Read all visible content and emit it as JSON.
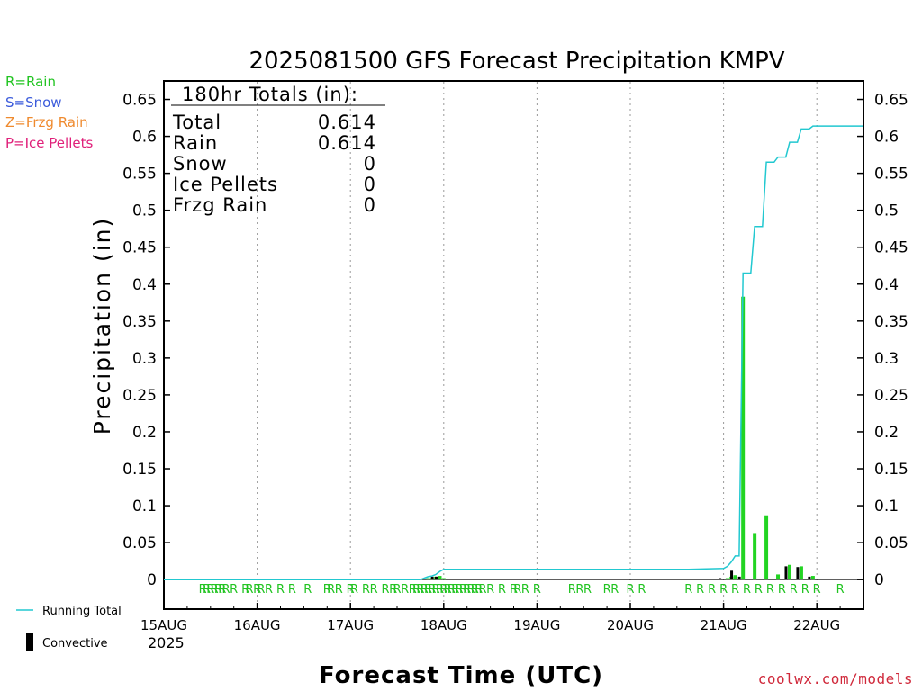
{
  "page": {
    "credit": "coolwx.com/models"
  },
  "precip_type_legend": [
    {
      "text": "R=Rain",
      "color": "#22c422"
    },
    {
      "text": "S=Snow",
      "color": "#3b5bdb"
    },
    {
      "text": "Z=Frzg Rain",
      "color": "#ef8a2e"
    },
    {
      "text": "P=Ice Pellets",
      "color": "#e0207a"
    }
  ],
  "totals_box": {
    "header": "180hr Totals (in):",
    "rows": [
      {
        "label": "Total",
        "value": "0.614"
      },
      {
        "label": "Rain",
        "value": "0.614"
      },
      {
        "label": "Snow",
        "value": "0"
      },
      {
        "label": "Ice Pellets",
        "value": "0"
      },
      {
        "label": "Frzg Rain",
        "value": "0"
      }
    ]
  },
  "bottom_legend": {
    "running_total_label": "Running Total",
    "convective_label": "Convective"
  },
  "chart_data": {
    "type": "bar",
    "title": "2025081500 GFS Forecast Precipitation KMPV",
    "xlabel": "Forecast Time (UTC)",
    "ylabel": "Precipitation (in)",
    "year_label": "2025",
    "x_unit": "forecast hour",
    "xlim": [
      0,
      180
    ],
    "ylim": [
      -0.04,
      0.675
    ],
    "y_ticks": [
      0,
      0.05,
      0.1,
      0.15,
      0.2,
      0.25,
      0.3,
      0.35,
      0.4,
      0.45,
      0.5,
      0.55,
      0.6,
      0.65
    ],
    "y_tick_labels": [
      "0",
      "0.05",
      "0.1",
      "0.15",
      "0.2",
      "0.25",
      "0.3",
      "0.35",
      "0.4",
      "0.45",
      "0.5",
      "0.55",
      "0.6",
      "0.65"
    ],
    "x_ticks": [
      {
        "hour": 0,
        "label": "15AUG"
      },
      {
        "hour": 24,
        "label": "16AUG"
      },
      {
        "hour": 48,
        "label": "17AUG"
      },
      {
        "hour": 72,
        "label": "18AUG"
      },
      {
        "hour": 96,
        "label": "19AUG"
      },
      {
        "hour": 120,
        "label": "20AUG"
      },
      {
        "hour": 144,
        "label": "21AUG"
      },
      {
        "hour": 168,
        "label": "22AUG"
      }
    ],
    "grid": "vertical dotted at day boundaries",
    "series": [
      {
        "name": "Running Total",
        "color": "#22c8d0",
        "points": [
          [
            0,
            0
          ],
          [
            66,
            0
          ],
          [
            67,
            0.002
          ],
          [
            68,
            0.004
          ],
          [
            69,
            0.005
          ],
          [
            70,
            0.007
          ],
          [
            71,
            0.011
          ],
          [
            72,
            0.014
          ],
          [
            135,
            0.014
          ],
          [
            144,
            0.015
          ],
          [
            145,
            0.018
          ],
          [
            146,
            0.024
          ],
          [
            147,
            0.032
          ],
          [
            148,
            0.032
          ],
          [
            149,
            0.415
          ],
          [
            151,
            0.415
          ],
          [
            152,
            0.478
          ],
          [
            154,
            0.478
          ],
          [
            155,
            0.565
          ],
          [
            157,
            0.565
          ],
          [
            158,
            0.572
          ],
          [
            160,
            0.572
          ],
          [
            161,
            0.592
          ],
          [
            163,
            0.592
          ],
          [
            164,
            0.61
          ],
          [
            166,
            0.61
          ],
          [
            167,
            0.614
          ],
          [
            180,
            0.614
          ]
        ]
      },
      {
        "name": "Rain",
        "color": "#22d422",
        "bars": [
          [
            68,
            0.002
          ],
          [
            69,
            0.002
          ],
          [
            70,
            0.004
          ],
          [
            71,
            0.005
          ],
          [
            72,
            0.002
          ],
          [
            145,
            0.002
          ],
          [
            146,
            0.004
          ],
          [
            147,
            0.006
          ],
          [
            149,
            0.383
          ],
          [
            152,
            0.063
          ],
          [
            155,
            0.087
          ],
          [
            158,
            0.007
          ],
          [
            161,
            0.02
          ],
          [
            164,
            0.018
          ],
          [
            167,
            0.005
          ]
        ]
      },
      {
        "name": "Convective",
        "color": "#000000",
        "bars": [
          [
            70,
            0.004
          ],
          [
            71,
            0.004
          ],
          [
            144,
            0.002
          ],
          [
            147,
            0.012
          ],
          [
            149,
            0.004
          ],
          [
            161,
            0.018
          ],
          [
            164,
            0.017
          ],
          [
            167,
            0.004
          ]
        ]
      }
    ],
    "precip_type_markers": {
      "symbol": "R",
      "hours": [
        10,
        11,
        12,
        13,
        14,
        15,
        16,
        18,
        21,
        22,
        24,
        25,
        27,
        30,
        33,
        37,
        42,
        43,
        45,
        48,
        49,
        52,
        54,
        57,
        59,
        60,
        62,
        64,
        65,
        66,
        67,
        68,
        69,
        70,
        71,
        72,
        73,
        74,
        75,
        76,
        77,
        78,
        79,
        80,
        81,
        82,
        84,
        87,
        90,
        91,
        93,
        96,
        105,
        107,
        109,
        114,
        116,
        120,
        123,
        135,
        138,
        141,
        144,
        147,
        150,
        153,
        156,
        159,
        162,
        165,
        168,
        174
      ]
    }
  }
}
